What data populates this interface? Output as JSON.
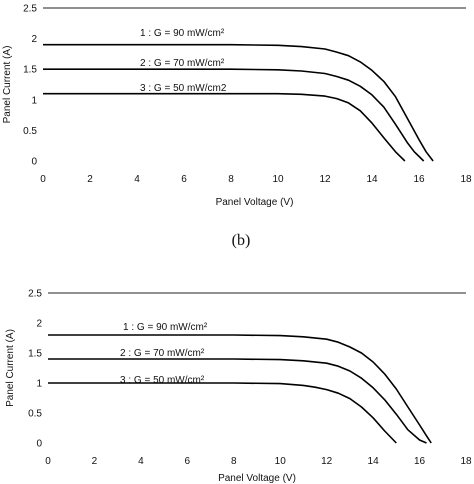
{
  "caption_b": "(b)",
  "chart_data": [
    {
      "type": "line",
      "xlabel": "Panel Voltage (V)",
      "ylabel": "Panel Current (A)",
      "xlim": [
        0,
        18
      ],
      "ylim": [
        0,
        2.5
      ],
      "x_ticks": [
        "0",
        "2",
        "4",
        "6",
        "8",
        "10",
        "12",
        "14",
        "16",
        "18"
      ],
      "y_ticks": [
        "0",
        "0.5",
        "1",
        "1.5",
        "2",
        "2.5"
      ],
      "top_gridline": true,
      "series": [
        {
          "name": "1 : G = 90 mW/cm²",
          "x": [
            0,
            8,
            10,
            11,
            12,
            12.5,
            13,
            13.5,
            14,
            14.5,
            15,
            15.5,
            16,
            16.3,
            16.6
          ],
          "y": [
            1.9,
            1.9,
            1.89,
            1.87,
            1.83,
            1.78,
            1.72,
            1.62,
            1.48,
            1.3,
            1.05,
            0.7,
            0.35,
            0.15,
            0
          ]
        },
        {
          "name": "2 : G = 70 mW/cm²",
          "x": [
            0,
            8,
            10,
            11,
            12,
            12.5,
            13,
            13.5,
            14,
            14.5,
            15,
            15.5,
            15.8,
            16.2
          ],
          "y": [
            1.5,
            1.5,
            1.49,
            1.47,
            1.43,
            1.38,
            1.32,
            1.22,
            1.08,
            0.88,
            0.6,
            0.3,
            0.15,
            0
          ]
        },
        {
          "name": "3 : G = 50 mW/cm2",
          "x": [
            0,
            8,
            10,
            11,
            12,
            12.5,
            13,
            13.5,
            14,
            14.5,
            15,
            15.4
          ],
          "y": [
            1.1,
            1.1,
            1.1,
            1.09,
            1.06,
            1.02,
            0.95,
            0.82,
            0.62,
            0.38,
            0.15,
            0
          ]
        }
      ]
    },
    {
      "type": "line",
      "xlabel": "Panel Voltage (V)",
      "ylabel": "Panel Current (A)",
      "xlim": [
        0,
        18
      ],
      "ylim": [
        0,
        2.5
      ],
      "x_ticks": [
        "0",
        "2",
        "4",
        "6",
        "8",
        "10",
        "12",
        "14",
        "16",
        "18"
      ],
      "y_ticks": [
        "0",
        "0.5",
        "1",
        "1.5",
        "2",
        "2.5"
      ],
      "top_gridline": true,
      "series": [
        {
          "name": "1 : G = 90 mW/cm²",
          "x": [
            0,
            8,
            10,
            11,
            12,
            12.5,
            13,
            13.5,
            14,
            14.5,
            15,
            15.5,
            16,
            16.3,
            16.5
          ],
          "y": [
            1.8,
            1.8,
            1.79,
            1.77,
            1.73,
            1.68,
            1.6,
            1.5,
            1.35,
            1.15,
            0.9,
            0.6,
            0.3,
            0.12,
            0
          ]
        },
        {
          "name": "2 : G = 70 mW/cm²",
          "x": [
            0,
            8,
            10,
            11,
            12,
            12.5,
            13,
            13.5,
            14,
            14.5,
            15,
            15.5,
            16,
            16.3
          ],
          "y": [
            1.4,
            1.4,
            1.39,
            1.37,
            1.33,
            1.28,
            1.2,
            1.08,
            0.92,
            0.72,
            0.48,
            0.22,
            0.05,
            0
          ]
        },
        {
          "name": "3 : G = 50 mW/cm²",
          "x": [
            0,
            8,
            10,
            11,
            11.5,
            12,
            12.5,
            13,
            13.5,
            14,
            14.5,
            15
          ],
          "y": [
            1.0,
            1.0,
            0.99,
            0.96,
            0.93,
            0.89,
            0.83,
            0.74,
            0.6,
            0.42,
            0.2,
            0
          ]
        }
      ]
    }
  ]
}
